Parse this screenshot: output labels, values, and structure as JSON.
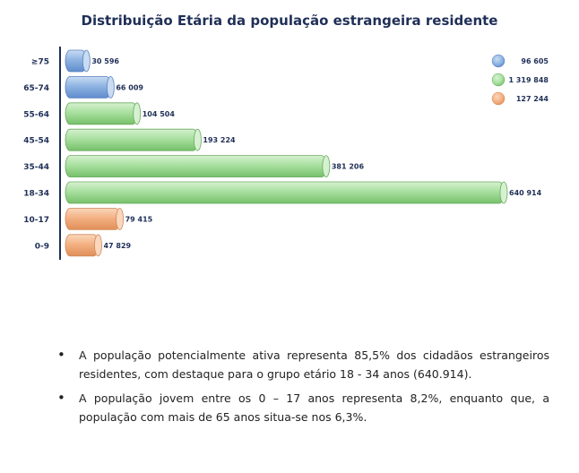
{
  "chart_data": {
    "type": "bar",
    "orientation": "horizontal",
    "title": "Distribuição Etária da população estrangeira residente",
    "categories": [
      "≥75",
      "65-74",
      "55-64",
      "45-54",
      "35-44",
      "18-34",
      "10-17",
      "0-9"
    ],
    "values": [
      30596,
      66009,
      104504,
      193224,
      381206,
      640914,
      79415,
      47829
    ],
    "value_labels": [
      "30 596",
      "66 009",
      "104 504",
      "193 224",
      "381 206",
      "640 914",
      "79 415",
      "47 829"
    ],
    "groups": [
      "idosos",
      "idosos",
      "ativos",
      "ativos",
      "ativos",
      "ativos",
      "jovens",
      "jovens"
    ],
    "xlim": [
      0,
      640914
    ],
    "grid": false,
    "legend_position": "top-right",
    "legend": [
      {
        "group": "idosos",
        "label": "96 605",
        "color": "#8fb4e3"
      },
      {
        "group": "ativos",
        "label": "1 319 848",
        "color": "#a9e0a0"
      },
      {
        "group": "jovens",
        "label": "127 244",
        "color": "#f4b183"
      }
    ],
    "colors": {
      "idosos": {
        "fill": "#8fb4e3",
        "light": "#c9dcf3",
        "dark": "#5f8ccc",
        "stroke": "#5a82bd"
      },
      "ativos": {
        "fill": "#a9e0a0",
        "light": "#d6f1d0",
        "dark": "#76c06a",
        "stroke": "#6aaa60"
      },
      "jovens": {
        "fill": "#f4b183",
        "light": "#fad7bd",
        "dark": "#e08f58",
        "stroke": "#cf8a5c"
      }
    },
    "axis_color": "#1f2f57"
  },
  "bullets": [
    "A população potencialmente ativa representa 85,5% dos cidadãos estrangeiros residentes, com destaque para o grupo etário 18 - 34 anos (640.914).",
    "A população jovem entre os 0 – 17 anos representa 8,2%, enquanto que, a população com mais de 65 anos situa-se nos 6,3%."
  ]
}
